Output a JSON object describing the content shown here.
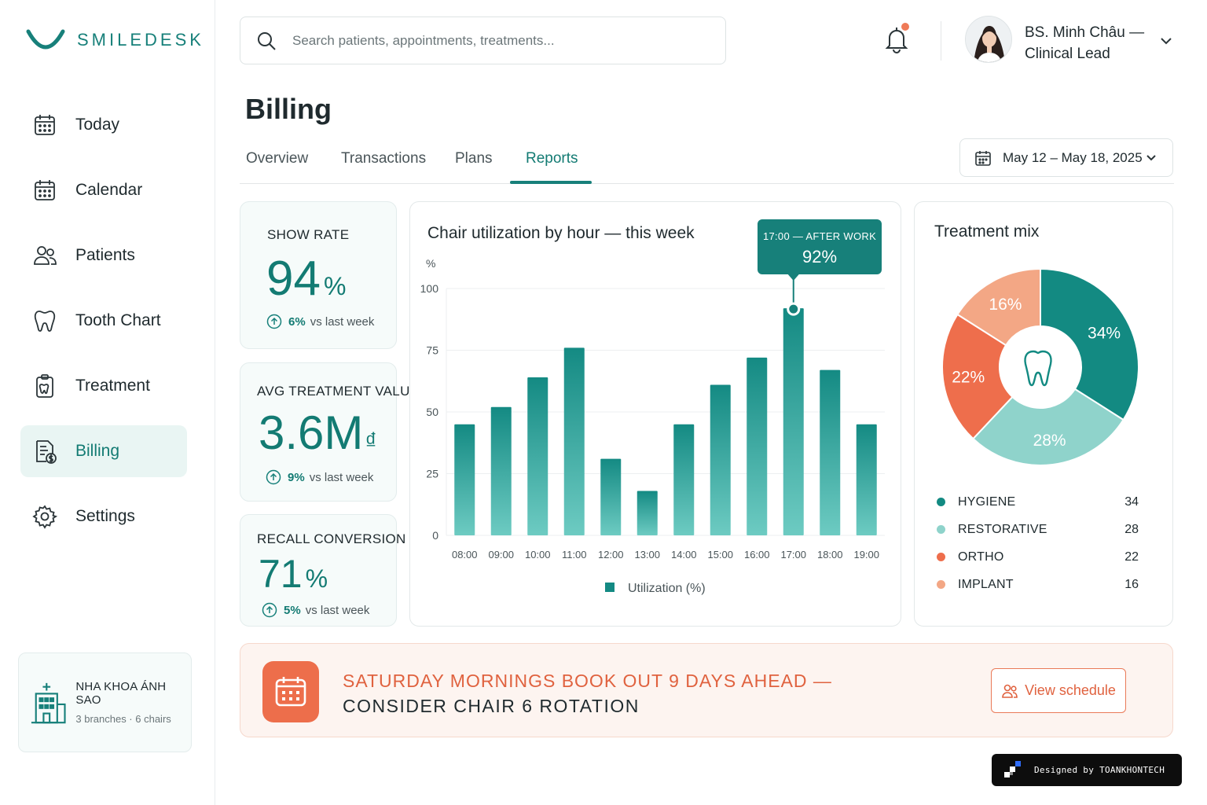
{
  "app": {
    "name": "SMILEDESK",
    "accent": "#17807a",
    "warn": "#ed6e4b"
  },
  "sidebar": {
    "items": [
      {
        "label": "Today",
        "icon": "calendar-day-icon"
      },
      {
        "label": "Calendar",
        "icon": "calendar-icon"
      },
      {
        "label": "Patients",
        "icon": "users-icon"
      },
      {
        "label": "Tooth Chart",
        "icon": "tooth-icon"
      },
      {
        "label": "Treatment",
        "icon": "clipboard-tooth-icon"
      },
      {
        "label": "Billing",
        "icon": "invoice-icon",
        "active": true
      },
      {
        "label": "Settings",
        "icon": "gear-icon"
      }
    ],
    "clinic": {
      "name": "NHA KHOA ÁNH SAO",
      "sub": "3 branches · 6 chairs",
      "icon": "hospital-icon"
    }
  },
  "search": {
    "placeholder": "Search patients, appointments, treatments..."
  },
  "user": {
    "name": "BS. Minh Châu — Clinical Lead",
    "has_notification": true
  },
  "page": {
    "title": "Billing",
    "tabs": [
      "Overview",
      "Transactions",
      "Plans",
      "Reports"
    ],
    "active_tab": "Reports",
    "date_range": "May 12 – May 18, 2025"
  },
  "stats": [
    {
      "label": "SHOW RATE",
      "value": "94",
      "unit": "%",
      "delta": "6%",
      "delta_text": "vs last week"
    },
    {
      "label": "AVG TREATMENT VALUE",
      "value": "3.6M",
      "unit": "₫",
      "delta": "9%",
      "delta_text": "vs last week"
    },
    {
      "label": "RECALL CONVERSION",
      "value": "71",
      "unit": "%",
      "delta": "5%",
      "delta_text": "vs last week"
    }
  ],
  "chart_data": {
    "type": "bar",
    "title": "Chair utilization by hour — this week",
    "ylabel": "%",
    "xlabel": "",
    "categories": [
      "08:00",
      "09:00",
      "10:00",
      "11:00",
      "12:00",
      "13:00",
      "14:00",
      "15:00",
      "16:00",
      "17:00",
      "18:00",
      "19:00"
    ],
    "series": [
      {
        "name": "Utilization (%)",
        "values": [
          45,
          52,
          64,
          76,
          31,
          18,
          45,
          61,
          72,
          92,
          67,
          45
        ]
      }
    ],
    "ylim": [
      0,
      100
    ],
    "yticks": [
      0,
      25,
      50,
      75,
      100
    ],
    "grid": true,
    "legend": "bottom",
    "highlight": {
      "category": "17:00",
      "label": "17:00 — AFTER WORK",
      "value_label": "92%"
    },
    "color": "#1f9690"
  },
  "treatment_mix": {
    "title": "Treatment mix",
    "type": "pie",
    "center_icon": "tooth-icon",
    "segments": [
      {
        "name": "HYGIENE",
        "value": 34,
        "label": "34%",
        "color": "#138a82"
      },
      {
        "name": "RESTORATIVE",
        "value": 28,
        "label": "28%",
        "color": "#8fd3cb"
      },
      {
        "name": "ORTHO",
        "value": 22,
        "label": "22%",
        "color": "#ee6e4c"
      },
      {
        "name": "IMPLANT",
        "value": 16,
        "label": "16%",
        "color": "#f3a785"
      }
    ]
  },
  "banner": {
    "line1": "SATURDAY MORNINGS BOOK OUT 9 DAYS AHEAD —",
    "line2": "CONSIDER CHAIR 6 ROTATION",
    "button": "View schedule",
    "icon": "calendar-icon"
  },
  "credit": "Designed by TOANKHONTECH"
}
